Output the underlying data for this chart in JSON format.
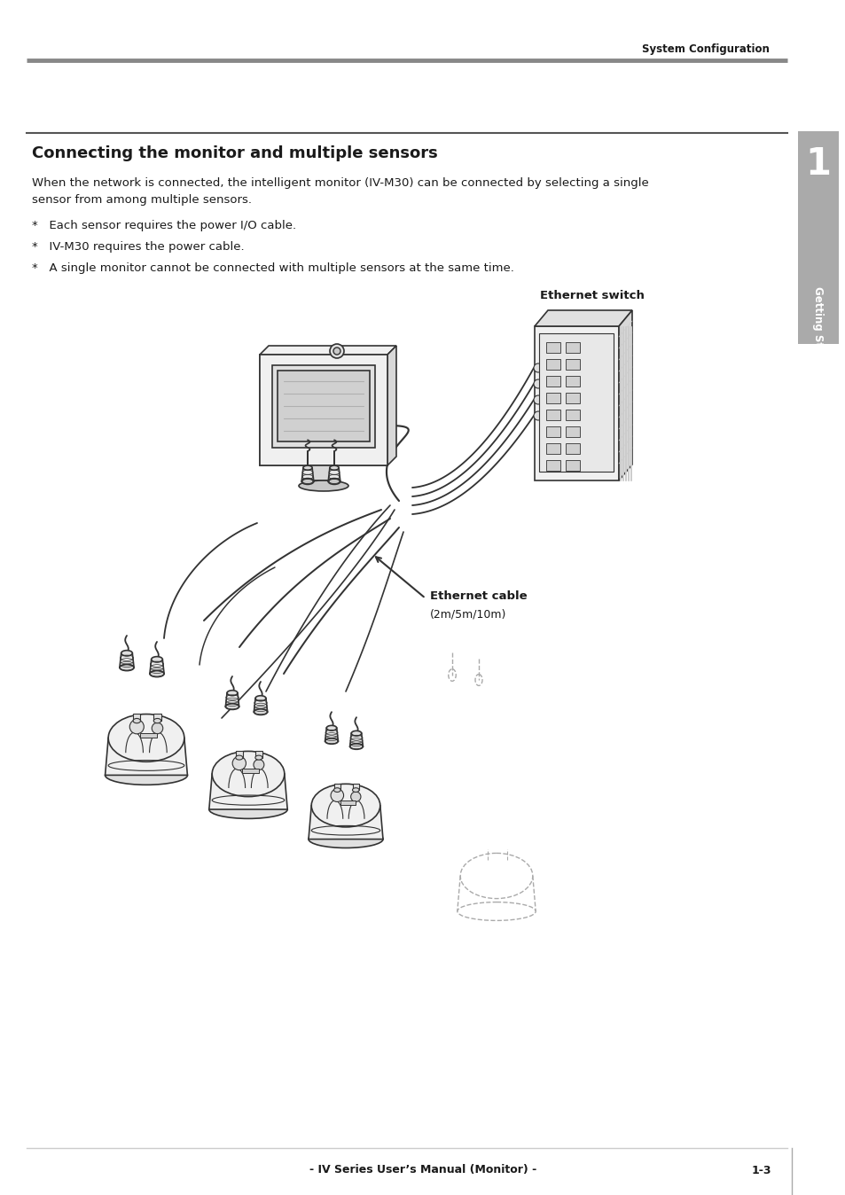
{
  "bg_color": "#ffffff",
  "text_color": "#1a1a1a",
  "header_text": "System Configuration",
  "header_line_color": "#999999",
  "section_title": "Connecting the monitor and multiple sensors",
  "body_text_1": "When the network is connected, the intelligent monitor (IV-M30) can be connected by selecting a single\nsensor from among multiple sensors.",
  "bullet_1": "*   Each sensor requires the power I/O cable.",
  "bullet_2": "*   IV-M30 requires the power cable.",
  "bullet_3": "*   A single monitor cannot be connected with multiple sensors at the same time.",
  "sidebar_color": "#aaaaaa",
  "sidebar_text": "Getting Started",
  "sidebar_number": "1",
  "footer_text": "- IV Series User’s Manual (Monitor) -",
  "footer_page": "1-3",
  "label_ethernet_switch": "Ethernet switch",
  "label_ethernet_cable": "Ethernet cable",
  "label_ethernet_cable_sub": "(2m/5m/10m)",
  "line_color": "#333333",
  "line_width": 1.2,
  "fill_light": "#f5f5f5",
  "fill_medium": "#e8e8e8",
  "fill_dark": "#d0d0d0",
  "fill_darker": "#b8b8b8"
}
